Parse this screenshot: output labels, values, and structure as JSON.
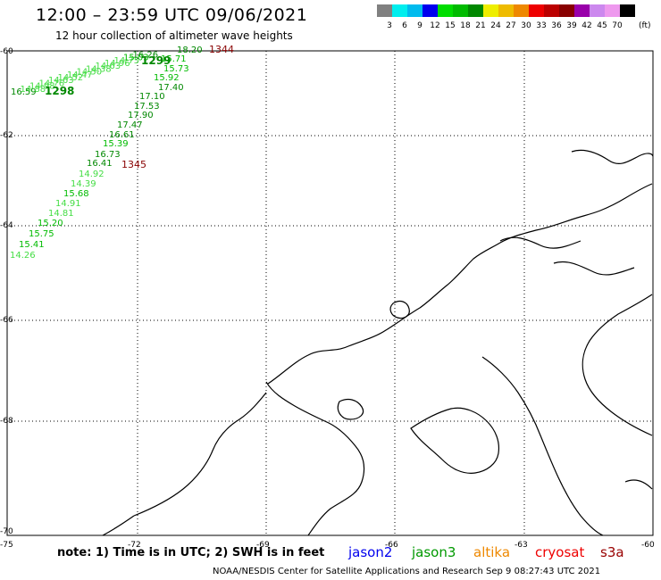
{
  "title": "12:00 – 23:59 UTC 09/06/2021",
  "subtitle": "12 hour collection of altimeter wave heights",
  "legend": {
    "unit": "(ft)",
    "labels": [
      "3",
      "6",
      "9",
      "12",
      "15",
      "18",
      "21",
      "24",
      "27",
      "30",
      "33",
      "36",
      "39",
      "42",
      "45",
      "70"
    ],
    "colors": [
      "#808080",
      "#00eeee",
      "#00bbee",
      "#0000ee",
      "#00dd00",
      "#00bb00",
      "#008800",
      "#eeee00",
      "#eebb00",
      "#ee8800",
      "#ee0000",
      "#bb0000",
      "#880000",
      "#9900aa",
      "#cc88ee",
      "#ee99ee",
      "#000000"
    ]
  },
  "axes": {
    "lat_labels": [
      "-60",
      "-62",
      "-64",
      "-66",
      "-68",
      "-70"
    ],
    "lon_labels": [
      "-75",
      "-72",
      "-69",
      "-66",
      "-63",
      "-60"
    ]
  },
  "track_labels": {
    "pass_1": [
      "18.20",
      "15.71",
      "15.73",
      "15.92",
      "17.40",
      "17.10",
      "17.53",
      "17.90",
      "17.47",
      "16.61",
      "15.39",
      "16.73",
      "16.41",
      "14.92",
      "14.39",
      "15.68",
      "14.91",
      "14.81",
      "15.20",
      "15.75",
      "15.41",
      "14.26"
    ],
    "pass_1_id": "1344",
    "pass_2_id": "1345",
    "cluster_ids": [
      "1299",
      "1298"
    ],
    "cluster_values": [
      "16.59",
      "14.88",
      "14.98",
      "14.76",
      "14.63",
      "14.52",
      "14.47",
      "14.50",
      "14.38",
      "14.63",
      "14.96",
      "14.75",
      "15.03",
      "16.26"
    ]
  },
  "footer": {
    "note": "note:  1) Time is in UTC;  2) SWH is in feet",
    "satellites": [
      {
        "name": "jason2",
        "color": "#0000ee"
      },
      {
        "name": "jason3",
        "color": "#009900"
      },
      {
        "name": "altika",
        "color": "#ee8800"
      },
      {
        "name": "cryosat",
        "color": "#ee0000"
      },
      {
        "name": "s3a",
        "color": "#990000"
      }
    ],
    "credit": "NOAA/NESDIS Center for Satellite Applications and Research    Sep  9 08:27:43 UTC 2021"
  }
}
